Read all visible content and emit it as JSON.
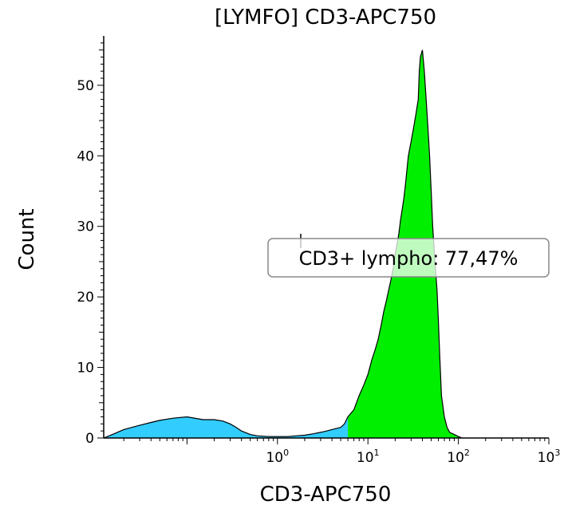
{
  "chart_data": {
    "type": "area",
    "title": "[LYMFO] CD3-APC750",
    "xlabel": "CD3-APC750",
    "ylabel": "Count",
    "x_scale": "log",
    "xlim": [
      0.012,
      1000
    ],
    "ylim": [
      0,
      57
    ],
    "y_ticks": [
      0,
      10,
      20,
      30,
      40,
      50
    ],
    "x_ticks": [
      {
        "base": "10",
        "exp": "0",
        "value": 1
      },
      {
        "base": "10",
        "exp": "1",
        "value": 10
      },
      {
        "base": "10",
        "exp": "2",
        "value": 100
      },
      {
        "base": "10",
        "exp": "3",
        "value": 1000
      }
    ],
    "gate": {
      "label": "CD3+ lympho: 77,47%",
      "range": [
        6,
        110
      ],
      "fill_color": "#00ee00",
      "outside_color": "#33ccff"
    },
    "histogram": {
      "x": [
        0.012,
        0.015,
        0.02,
        0.03,
        0.04,
        0.05,
        0.07,
        0.1,
        0.15,
        0.2,
        0.25,
        0.3,
        0.35,
        0.4,
        0.5,
        0.6,
        0.8,
        1.0,
        1.3,
        1.6,
        2.0,
        2.5,
        3.0,
        3.5,
        4.0,
        5.0,
        5.5,
        6.0,
        7.0,
        8.0,
        9.0,
        10,
        11,
        12,
        13,
        14,
        15,
        16,
        17,
        18,
        19,
        20,
        21,
        22,
        23,
        24,
        25,
        26,
        27,
        28,
        29,
        30,
        32,
        34,
        35,
        36,
        37,
        38,
        40,
        42,
        44,
        46,
        48,
        50,
        52,
        55,
        58,
        60,
        62,
        65,
        70,
        75,
        80,
        90,
        100,
        110
      ],
      "y": [
        0,
        0.5,
        1.2,
        1.8,
        2.2,
        2.5,
        2.8,
        3.0,
        2.6,
        2.6,
        2.4,
        2.0,
        1.5,
        1.0,
        0.5,
        0.3,
        0.2,
        0.2,
        0.2,
        0.3,
        0.4,
        0.6,
        0.8,
        1.0,
        1.2,
        1.5,
        2.0,
        3.0,
        4.0,
        6.0,
        7.5,
        9.0,
        11,
        12.5,
        14,
        16,
        18,
        19.5,
        21,
        22.5,
        24,
        26,
        27.5,
        29,
        31,
        32.5,
        34,
        36,
        38,
        40,
        41,
        42,
        44,
        46,
        47,
        48,
        52,
        54,
        55,
        52,
        48,
        44,
        40,
        35,
        30,
        25,
        21,
        17,
        12,
        6,
        3,
        1.5,
        0.8,
        0.5,
        0.2,
        0
      ]
    }
  }
}
